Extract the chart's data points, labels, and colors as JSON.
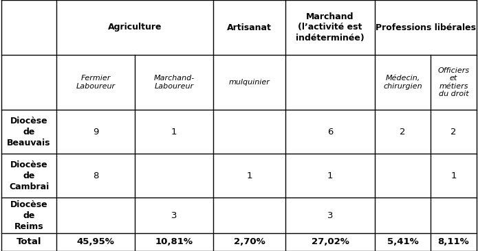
{
  "col_headers_level1_labels": [
    "Agriculture",
    "Artisanat",
    "Marchand\n(l’activité est\nindéterminée)",
    "Professions libérales"
  ],
  "col_headers_level2_labels": [
    "Fermier\nLaboureur",
    "Marchand-\nLaboureur",
    "mulquinier",
    "",
    "Médecin,\nchirurgien",
    "Officiers\net\nmétiers\ndu droit"
  ],
  "row_labels": [
    "Diocèse\nde\nBeauvais",
    "Diocèse\nde\nCambrai",
    "Diocèse\nde\nReims",
    "Total"
  ],
  "data": [
    [
      "9",
      "1",
      "",
      "6",
      "2",
      "2"
    ],
    [
      "8",
      "",
      "1",
      "1",
      "",
      "1"
    ],
    [
      "",
      "3",
      "",
      "3",
      "",
      ""
    ],
    [
      "45,95%",
      "10,81%",
      "2,70%",
      "27,02%",
      "5,41%",
      "8,11%"
    ]
  ],
  "bg_color": "#ffffff",
  "text_color": "#000000",
  "border_color": "#000000"
}
